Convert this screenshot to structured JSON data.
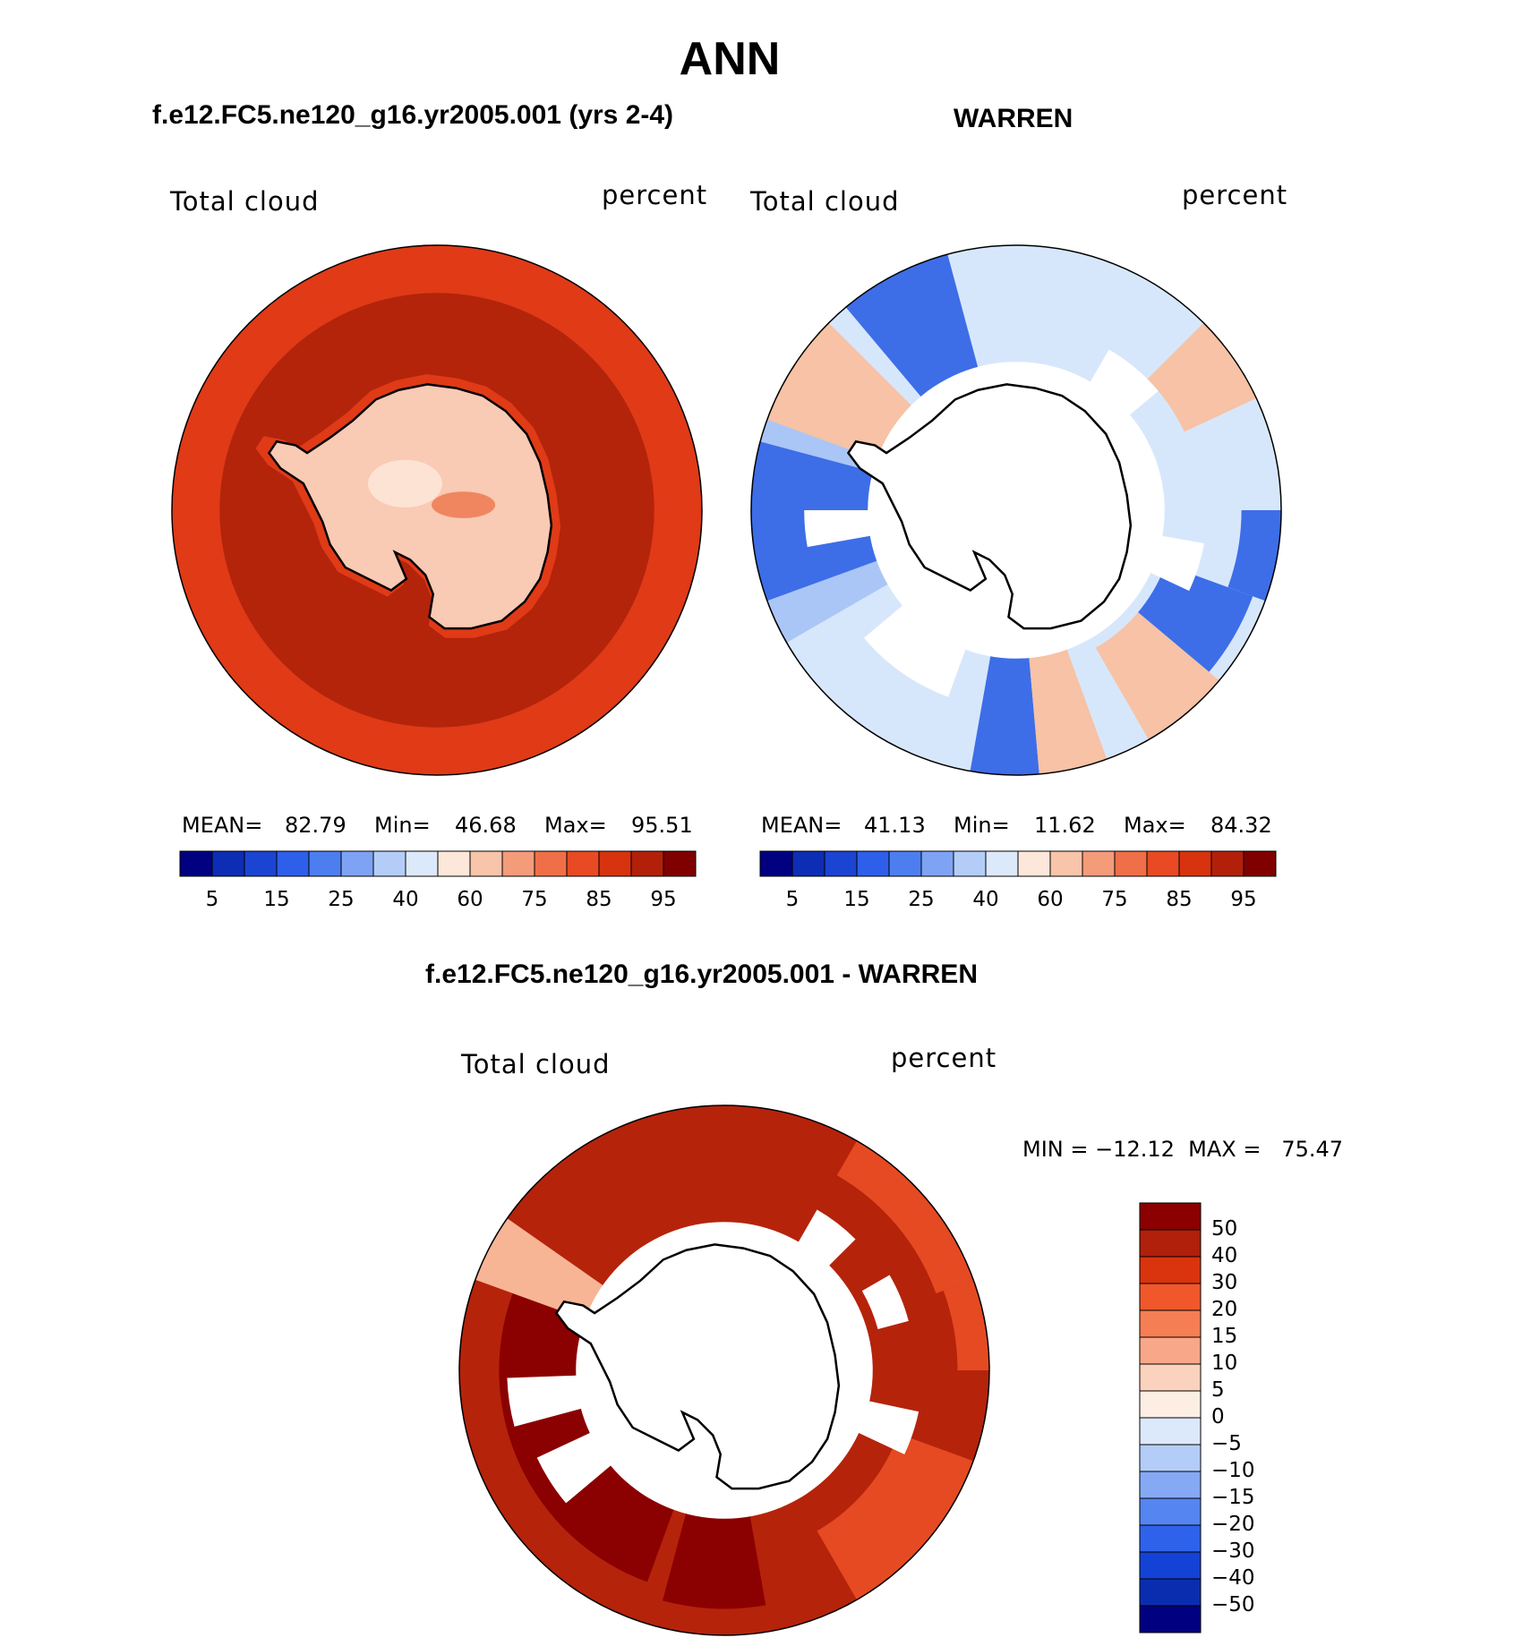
{
  "title": "ANN",
  "panels": [
    {
      "subtitle": "f.e12.FC5.ne120_g16.yr2005.001 (yrs 2-4)",
      "left_label": "Total cloud",
      "right_label": "percent",
      "stats": {
        "mean_label": "MEAN=",
        "mean": "82.79",
        "min_label": "Min=",
        "min": "46.68",
        "max_label": "Max=",
        "max": "95.51"
      }
    },
    {
      "subtitle": "WARREN",
      "left_label": "Total cloud",
      "right_label": "percent",
      "stats": {
        "mean_label": "MEAN=",
        "mean": "41.13",
        "min_label": "Min=",
        "min": "11.62",
        "max_label": "Max=",
        "max": "84.32"
      }
    },
    {
      "subtitle": "f.e12.FC5.ne120_g16.yr2005.001 - WARREN",
      "left_label": "Total cloud",
      "right_label": "percent",
      "stats_text": "MIN = −12.12  MAX =   75.47"
    }
  ],
  "abs_colorbar": {
    "tick_labels": [
      "5",
      "15",
      "25",
      "40",
      "60",
      "75",
      "85",
      "95"
    ],
    "colors": [
      "#000080",
      "#0d2db4",
      "#1b44d2",
      "#2e5fea",
      "#4d7ef0",
      "#7ea3f4",
      "#b4cdf8",
      "#dce9fb",
      "#fde7da",
      "#f8c4aa",
      "#f49b7a",
      "#ef6f49",
      "#e84a24",
      "#d7330f",
      "#b3200a",
      "#800000"
    ]
  },
  "diff_colorbar": {
    "tick_labels": [
      "50",
      "40",
      "30",
      "20",
      "15",
      "10",
      "5",
      "0",
      "−5",
      "−10",
      "−15",
      "−20",
      "−30",
      "−40",
      "−50"
    ],
    "colors": [
      "#8b0000",
      "#b0200a",
      "#d9340e",
      "#f0582c",
      "#f67e54",
      "#f8a888",
      "#fbd2bd",
      "#fdeee4",
      "#dce9fb",
      "#b4cdf8",
      "#86a9f5",
      "#5585f1",
      "#2e62ea",
      "#1342d6",
      "#0a2db0",
      "#000080"
    ]
  },
  "map_colors": {
    "ocean_model": "#e03a17",
    "ring_model": "#b3240b",
    "land_model": "#f9cab4",
    "land_model_light": "#fde3d4",
    "obs_base": "#d7e7fb",
    "obs_mid": "#aac6f6",
    "obs_dark": "#3d6ee8",
    "obs_warm": "#f7c2a5",
    "diff_base": "#b5230b",
    "diff_dark": "#8b0000",
    "diff_mid": "#e64a22",
    "coastline": "#000000"
  }
}
